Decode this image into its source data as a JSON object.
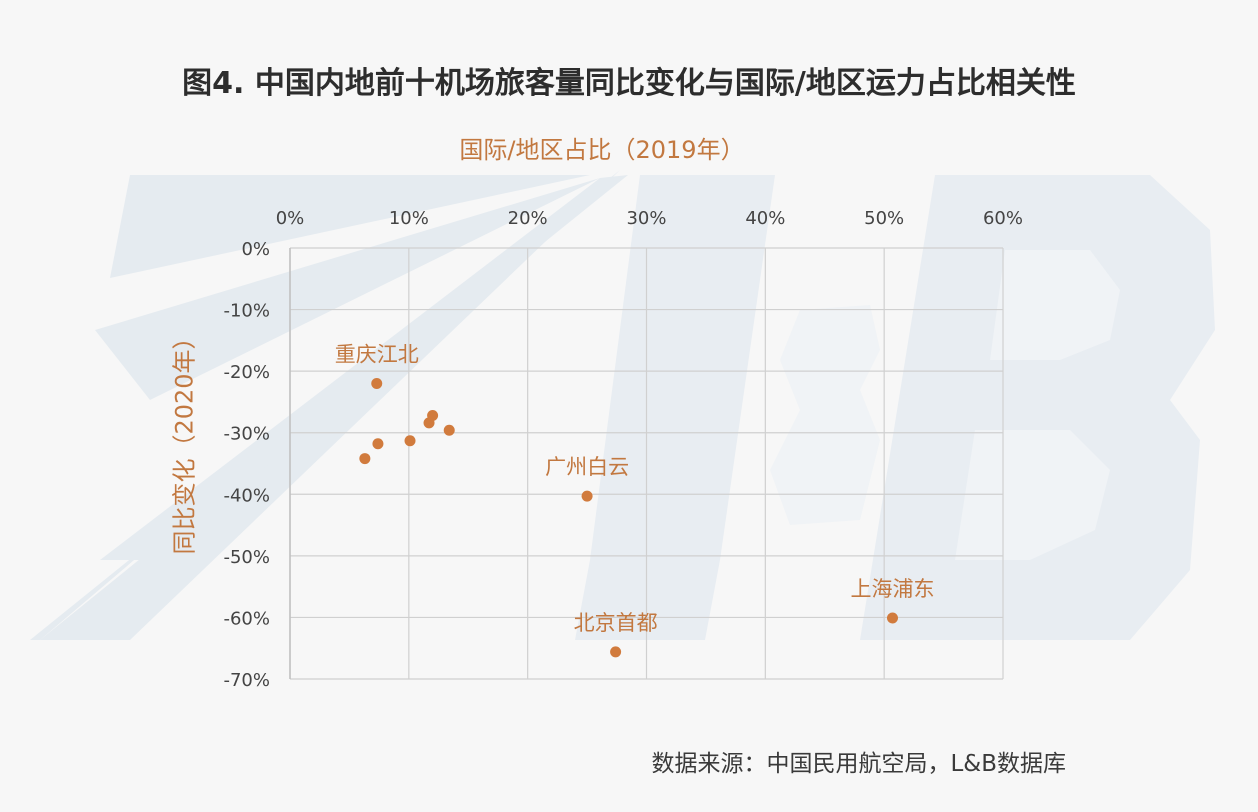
{
  "chart_data": {
    "type": "scatter",
    "title": "图4. 中国内地前十机场旅客量同比变化与国际/地区运力占比相关性",
    "xlabel": "国际/地区占比（2019年）",
    "ylabel": "同比变化（2020年）",
    "xlim": [
      0,
      0.6
    ],
    "ylim": [
      -0.7,
      0
    ],
    "x_ticks": [
      "0%",
      "10%",
      "20%",
      "30%",
      "40%",
      "50%",
      "60%"
    ],
    "y_ticks": [
      "0%",
      "-10%",
      "-20%",
      "-30%",
      "-40%",
      "-50%",
      "-60%",
      "-70%"
    ],
    "x_axis_position": "top",
    "grid": true,
    "points": [
      {
        "x": 0.073,
        "y": -0.22,
        "label": "重庆江北"
      },
      {
        "x": 0.074,
        "y": -0.318,
        "label": ""
      },
      {
        "x": 0.063,
        "y": -0.342,
        "label": ""
      },
      {
        "x": 0.101,
        "y": -0.313,
        "label": ""
      },
      {
        "x": 0.117,
        "y": -0.284,
        "label": ""
      },
      {
        "x": 0.12,
        "y": -0.272,
        "label": ""
      },
      {
        "x": 0.134,
        "y": -0.296,
        "label": ""
      },
      {
        "x": 0.25,
        "y": -0.403,
        "label": "广州白云"
      },
      {
        "x": 0.274,
        "y": -0.656,
        "label": "北京首都"
      },
      {
        "x": 0.507,
        "y": -0.601,
        "label": "上海浦东"
      }
    ],
    "marker_color": "#d17b3d",
    "label_color": "#c27840"
  },
  "source_text": "数据来源：中国民用航空局，L&B数据库",
  "watermark": "L&B"
}
